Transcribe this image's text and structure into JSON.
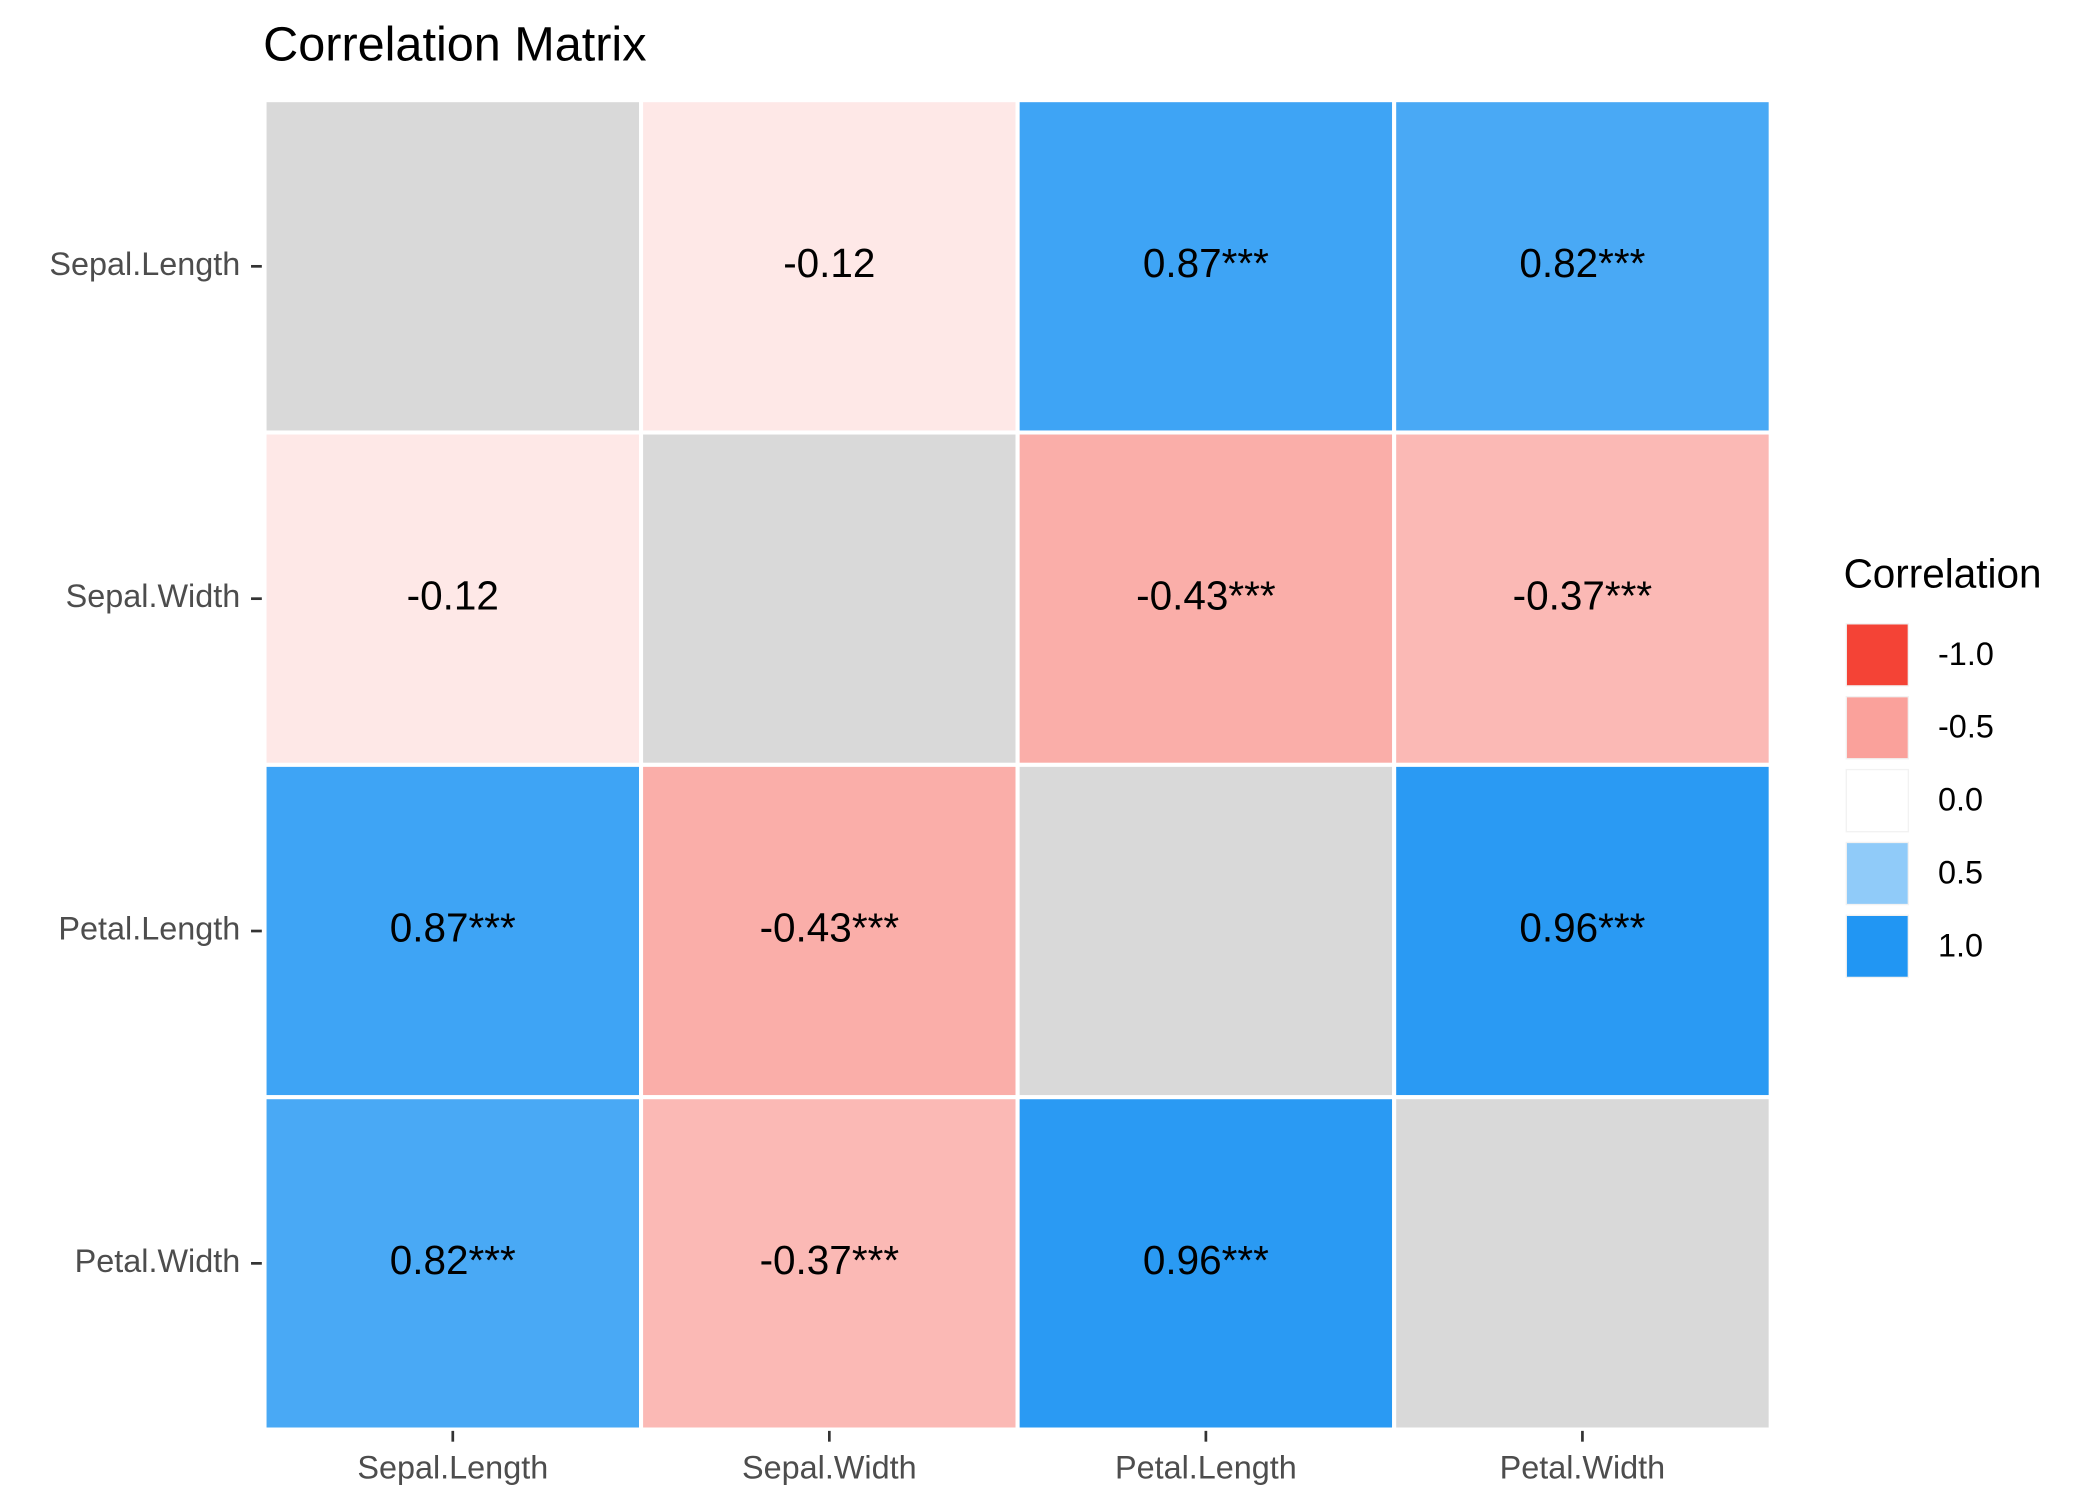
{
  "chart_data": {
    "type": "heatmap",
    "title": "Correlation Matrix",
    "x_categories": [
      "Sepal.Length",
      "Sepal.Width",
      "Petal.Length",
      "Petal.Width"
    ],
    "y_categories": [
      "Sepal.Length",
      "Sepal.Width",
      "Petal.Length",
      "Petal.Width"
    ],
    "values": [
      [
        null,
        -0.12,
        0.87,
        0.82
      ],
      [
        -0.12,
        null,
        -0.43,
        -0.37
      ],
      [
        0.87,
        -0.43,
        null,
        0.96
      ],
      [
        0.82,
        -0.37,
        0.96,
        null
      ]
    ],
    "value_labels": [
      [
        null,
        "-0.12",
        "0.87***",
        "0.82***"
      ],
      [
        "-0.12",
        null,
        "-0.43***",
        "-0.37***"
      ],
      [
        "0.87***",
        "-0.43***",
        null,
        "0.96***"
      ],
      [
        "0.82***",
        "-0.37***",
        "0.96***",
        null
      ]
    ],
    "low_color": "#f44336",
    "mid_color": "#ffffff",
    "high_color": "#2196f3",
    "na_color": "#d9d9d9",
    "legend": {
      "title": "Correlation",
      "ticks": [
        {
          "value": -1,
          "label": "-1.0"
        },
        -0.5,
        {
          "value": 0,
          "label": "0.0"
        },
        0.5,
        {
          "value": 1,
          "label": "1.0"
        }
      ]
    }
  }
}
